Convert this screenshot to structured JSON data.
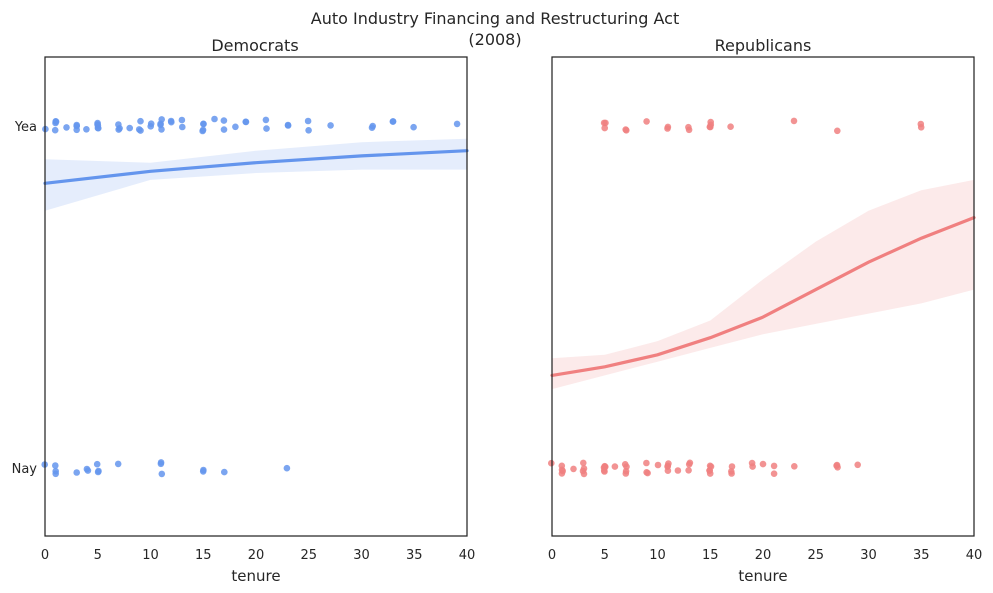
{
  "colors": {
    "dem": "#6495ed",
    "rep": "#f08080",
    "axis": "#262626"
  },
  "chart_data": [
    {
      "type": "scatter",
      "suptitle_line1": "Auto Industry Financing and Restructuring Act",
      "suptitle_line2": "(2008)",
      "title": "Democrats",
      "xlabel": "tenure",
      "xlim": [
        0,
        40
      ],
      "xticks": [
        0,
        5,
        10,
        15,
        20,
        25,
        30,
        35,
        40
      ],
      "ytick_labels": [
        "Yea",
        "Nay"
      ],
      "grid": false,
      "series": [
        {
          "vote": "Yea",
          "values": [
            [
              0,
              1
            ],
            [
              1,
              1
            ],
            [
              1,
              1
            ],
            [
              1,
              1
            ],
            [
              1,
              1
            ],
            [
              2,
              1
            ],
            [
              3,
              1
            ],
            [
              3,
              1
            ],
            [
              3,
              1
            ],
            [
              4,
              1
            ],
            [
              5,
              1
            ],
            [
              5,
              1
            ],
            [
              5,
              1
            ],
            [
              5,
              1
            ],
            [
              5,
              1
            ],
            [
              7,
              1
            ],
            [
              7,
              1
            ],
            [
              7,
              1
            ],
            [
              8,
              1
            ],
            [
              9,
              1
            ],
            [
              9,
              1
            ],
            [
              9,
              1
            ],
            [
              10,
              1
            ],
            [
              10,
              1
            ],
            [
              11,
              1
            ],
            [
              11,
              1
            ],
            [
              11,
              1
            ],
            [
              11,
              1
            ],
            [
              12,
              1
            ],
            [
              12,
              1
            ],
            [
              13,
              1
            ],
            [
              13,
              1
            ],
            [
              15,
              1
            ],
            [
              15,
              1
            ],
            [
              15,
              1
            ],
            [
              15,
              1
            ],
            [
              16,
              1
            ],
            [
              17,
              1
            ],
            [
              17,
              1
            ],
            [
              18,
              1
            ],
            [
              19,
              1
            ],
            [
              19,
              1
            ],
            [
              21,
              1
            ],
            [
              21,
              1
            ],
            [
              23,
              1
            ],
            [
              23,
              1
            ],
            [
              25,
              1
            ],
            [
              25,
              1
            ],
            [
              27,
              1
            ],
            [
              31,
              1
            ],
            [
              31,
              1
            ],
            [
              33,
              1
            ],
            [
              33,
              1
            ],
            [
              35,
              1
            ],
            [
              39,
              1
            ]
          ]
        },
        {
          "vote": "Nay",
          "values": [
            [
              0,
              0
            ],
            [
              1,
              0
            ],
            [
              1,
              0
            ],
            [
              1,
              0
            ],
            [
              3,
              0
            ],
            [
              4,
              0
            ],
            [
              4,
              0
            ],
            [
              5,
              0
            ],
            [
              5,
              0
            ],
            [
              5,
              0
            ],
            [
              7,
              0
            ],
            [
              11,
              0
            ],
            [
              11,
              0
            ],
            [
              11,
              0
            ],
            [
              15,
              0
            ],
            [
              15,
              0
            ],
            [
              17,
              0
            ],
            [
              23,
              0
            ]
          ]
        }
      ],
      "logistic_fit": {
        "tenure": [
          0,
          10,
          20,
          30,
          40
        ],
        "p_yea": [
          0.83,
          0.865,
          0.89,
          0.91,
          0.925
        ],
        "ci_lower": [
          0.75,
          0.84,
          0.86,
          0.87,
          0.87
        ],
        "ci_upper": [
          0.9,
          0.89,
          0.925,
          0.95,
          0.96
        ]
      }
    },
    {
      "type": "scatter",
      "title": "Republicans",
      "xlabel": "tenure",
      "xlim": [
        0,
        40
      ],
      "xticks": [
        0,
        5,
        10,
        15,
        20,
        25,
        30,
        35,
        40
      ],
      "grid": false,
      "series": [
        {
          "vote": "Yea",
          "values": [
            [
              5,
              1
            ],
            [
              5,
              1
            ],
            [
              5,
              1
            ],
            [
              7,
              1
            ],
            [
              7,
              1
            ],
            [
              9,
              1
            ],
            [
              11,
              1
            ],
            [
              11,
              1
            ],
            [
              13,
              1
            ],
            [
              13,
              1
            ],
            [
              15,
              1
            ],
            [
              15,
              1
            ],
            [
              15,
              1
            ],
            [
              15,
              1
            ],
            [
              17,
              1
            ],
            [
              23,
              1
            ],
            [
              27,
              1
            ],
            [
              35,
              1
            ],
            [
              35,
              1
            ]
          ]
        },
        {
          "vote": "Nay",
          "values": [
            [
              0,
              0
            ],
            [
              1,
              0
            ],
            [
              1,
              0
            ],
            [
              1,
              0
            ],
            [
              1,
              0
            ],
            [
              2,
              0
            ],
            [
              3,
              0
            ],
            [
              3,
              0
            ],
            [
              3,
              0
            ],
            [
              3,
              0
            ],
            [
              5,
              0
            ],
            [
              5,
              0
            ],
            [
              5,
              0
            ],
            [
              5,
              0
            ],
            [
              5,
              0
            ],
            [
              5,
              0
            ],
            [
              6,
              0
            ],
            [
              7,
              0
            ],
            [
              7,
              0
            ],
            [
              7,
              0
            ],
            [
              7,
              0
            ],
            [
              9,
              0
            ],
            [
              9,
              0
            ],
            [
              9,
              0
            ],
            [
              10,
              0
            ],
            [
              11,
              0
            ],
            [
              11,
              0
            ],
            [
              11,
              0
            ],
            [
              11,
              0
            ],
            [
              12,
              0
            ],
            [
              13,
              0
            ],
            [
              13,
              0
            ],
            [
              13,
              0
            ],
            [
              15,
              0
            ],
            [
              15,
              0
            ],
            [
              15,
              0
            ],
            [
              15,
              0
            ],
            [
              15,
              0
            ],
            [
              17,
              0
            ],
            [
              17,
              0
            ],
            [
              17,
              0
            ],
            [
              19,
              0
            ],
            [
              19,
              0
            ],
            [
              20,
              0
            ],
            [
              21,
              0
            ],
            [
              21,
              0
            ],
            [
              23,
              0
            ],
            [
              27,
              0
            ],
            [
              27,
              0
            ],
            [
              27,
              0
            ],
            [
              29,
              0
            ]
          ]
        }
      ],
      "logistic_fit": {
        "tenure": [
          0,
          5,
          10,
          15,
          20,
          25,
          30,
          35,
          40
        ],
        "p_yea": [
          0.27,
          0.295,
          0.33,
          0.38,
          0.44,
          0.52,
          0.6,
          0.67,
          0.73
        ],
        "ci_lower": [
          0.23,
          0.27,
          0.31,
          0.35,
          0.39,
          0.42,
          0.45,
          0.48,
          0.52
        ],
        "ci_upper": [
          0.32,
          0.33,
          0.37,
          0.43,
          0.55,
          0.66,
          0.75,
          0.81,
          0.84
        ]
      }
    }
  ]
}
